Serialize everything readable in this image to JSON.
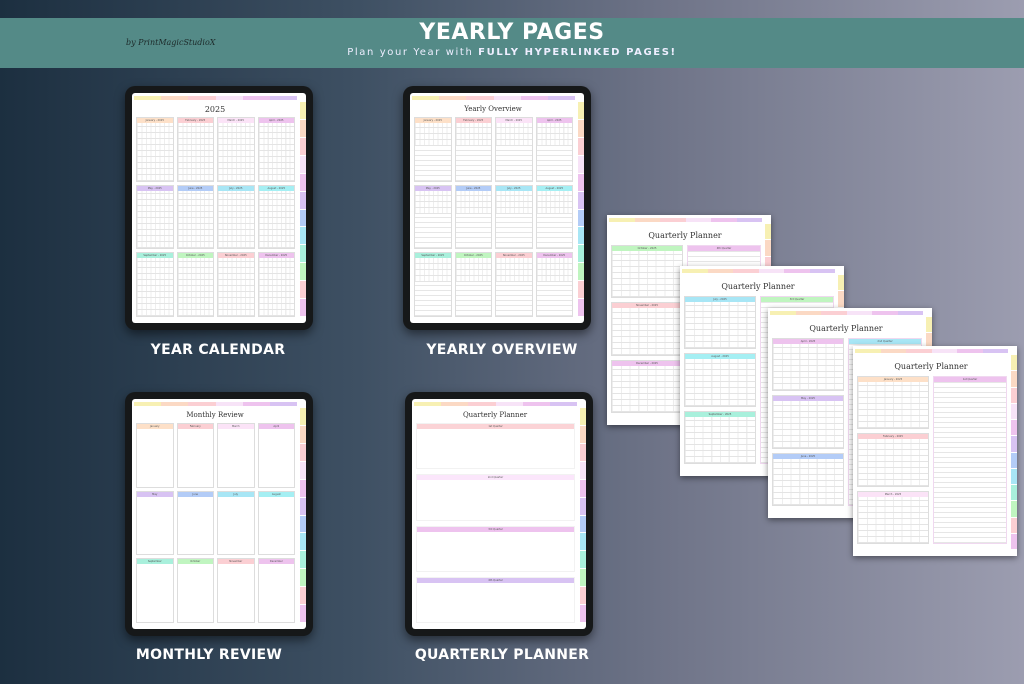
{
  "header": {
    "title": "YEARLY PAGES",
    "subtitle_plain": "Plan your Year with ",
    "subtitle_bold": "FULLY HYPERLINKED PAGES!",
    "signature": "by PrintMagicStudioX",
    "band_color": "#548a87"
  },
  "tab_colors": [
    "#f7f0b3",
    "#fbd9c4",
    "#fbcfd3",
    "#f7e3f7",
    "#eec3ee",
    "#d8c3f3"
  ],
  "side_tab_colors": [
    "#f7f0b3",
    "#fbd9c4",
    "#fbcfd3",
    "#f7e3f7",
    "#eec3ee",
    "#d8c3f3",
    "#b3ccf7",
    "#a8e6f5",
    "#a9f0dc",
    "#c0f5c0",
    "#fbcfd3",
    "#eec3ee"
  ],
  "months": [
    {
      "name": "January",
      "color": "#fde0c8"
    },
    {
      "name": "February",
      "color": "#fbcfd3"
    },
    {
      "name": "March",
      "color": "#fbe3f7"
    },
    {
      "name": "April",
      "color": "#eec3ee"
    },
    {
      "name": "May",
      "color": "#d8c3f3"
    },
    {
      "name": "June",
      "color": "#b3ccf7"
    },
    {
      "name": "July",
      "color": "#a8e6f5"
    },
    {
      "name": "August",
      "color": "#a5eff3"
    },
    {
      "name": "September",
      "color": "#a9f0dc"
    },
    {
      "name": "October",
      "color": "#c0f5c0"
    },
    {
      "name": "November",
      "color": "#fbcfd3"
    },
    {
      "name": "December",
      "color": "#eec3ee"
    }
  ],
  "year": "2025",
  "tablets": [
    {
      "type": "year",
      "title": "2025",
      "label": "YEAR CALENDAR"
    },
    {
      "type": "overview",
      "title": "Yearly Overview",
      "label": "YEARLY OVERVIEW"
    },
    {
      "type": "review",
      "title": "Monthly Review",
      "label": "MONTHLY REVIEW"
    },
    {
      "type": "quarterly",
      "title": "Quarterly Planner",
      "label": "QUARTERLY PLANNER"
    }
  ],
  "quarters": [
    {
      "name": "1st Quarter",
      "color": "#fbd3d6"
    },
    {
      "name": "2nd Quarter",
      "color": "#fbe6fb"
    },
    {
      "name": "3rd Quarter",
      "color": "#eec3ee"
    },
    {
      "name": "4th Quarter",
      "color": "#d8c3f3"
    }
  ],
  "quarter_pages": [
    {
      "title": "Quarterly Planner",
      "quarter": "4th Quarter",
      "quarter_color": "#eec3ee",
      "months": [
        9,
        10,
        11
      ]
    },
    {
      "title": "Quarterly Planner",
      "quarter": "3rd Quarter",
      "quarter_color": "#c0f5c0",
      "months": [
        6,
        7,
        8
      ]
    },
    {
      "title": "Quarterly Planner",
      "quarter": "2nd Quarter",
      "quarter_color": "#a8e6f5",
      "months": [
        3,
        4,
        5
      ]
    },
    {
      "title": "Quarterly Planner",
      "quarter": "1st Quarter",
      "quarter_color": "#eec3ee",
      "months": [
        0,
        1,
        2
      ]
    }
  ]
}
